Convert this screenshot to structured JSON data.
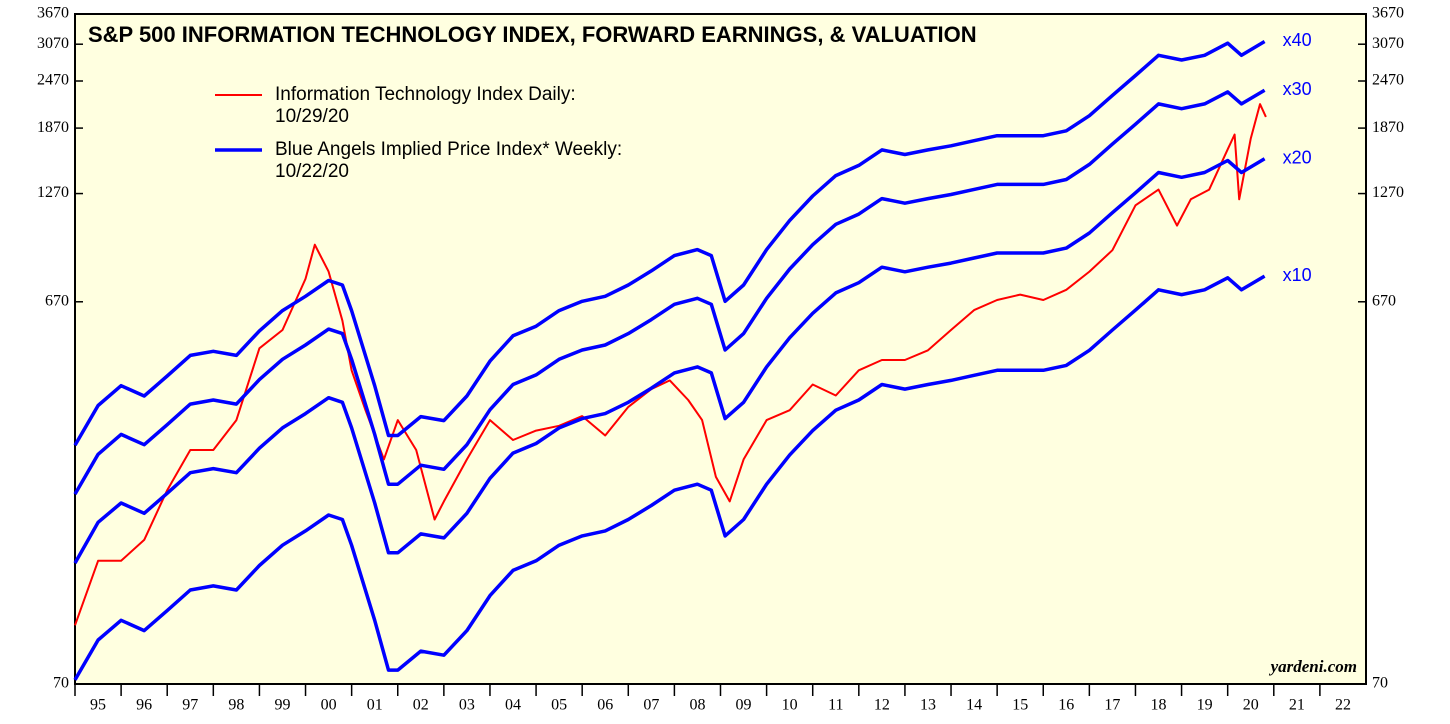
{
  "chart_data": {
    "type": "line",
    "title": "S&P 500 INFORMATION TECHNOLOGY INDEX, FORWARD EARNINGS, & VALUATION",
    "legend": [
      {
        "label": "Information Technology Index Daily:",
        "date": "10/29/20",
        "color": "#ff0000"
      },
      {
        "label": "Blue Angels Implied Price Index* Weekly:",
        "date": "10/22/20",
        "color": "#0000ff"
      }
    ],
    "source": "yardeni.com",
    "log_scale": true,
    "xlim": [
      1995,
      2023
    ],
    "xticks": [
      {
        "value": 1995,
        "label": "95"
      },
      {
        "value": 1996,
        "label": "96"
      },
      {
        "value": 1997,
        "label": "97"
      },
      {
        "value": 1998,
        "label": "98"
      },
      {
        "value": 1999,
        "label": "99"
      },
      {
        "value": 2000,
        "label": "00"
      },
      {
        "value": 2001,
        "label": "01"
      },
      {
        "value": 2002,
        "label": "02"
      },
      {
        "value": 2003,
        "label": "03"
      },
      {
        "value": 2004,
        "label": "04"
      },
      {
        "value": 2005,
        "label": "05"
      },
      {
        "value": 2006,
        "label": "06"
      },
      {
        "value": 2007,
        "label": "07"
      },
      {
        "value": 2008,
        "label": "08"
      },
      {
        "value": 2009,
        "label": "09"
      },
      {
        "value": 2010,
        "label": "10"
      },
      {
        "value": 2011,
        "label": "11"
      },
      {
        "value": 2012,
        "label": "12"
      },
      {
        "value": 2013,
        "label": "13"
      },
      {
        "value": 2014,
        "label": "14"
      },
      {
        "value": 2015,
        "label": "15"
      },
      {
        "value": 2016,
        "label": "16"
      },
      {
        "value": 2017,
        "label": "17"
      },
      {
        "value": 2018,
        "label": "18"
      },
      {
        "value": 2019,
        "label": "19"
      },
      {
        "value": 2020,
        "label": "20"
      },
      {
        "value": 2021,
        "label": "21"
      },
      {
        "value": 2022,
        "label": "22"
      }
    ],
    "ylim": [
      70,
      3670
    ],
    "yticks": [
      70,
      670,
      1270,
      1870,
      2470,
      3070,
      3670
    ],
    "y2lim": [
      70,
      3670
    ],
    "y2ticks": [
      70,
      670,
      1270,
      1870,
      2470,
      3070,
      3670
    ],
    "x": [
      1995.0,
      1995.5,
      1996.0,
      1996.5,
      1997.0,
      1997.5,
      1998.0,
      1998.5,
      1999.0,
      1999.5,
      2000.0,
      2000.5,
      2000.8,
      2001.0,
      2001.5,
      2001.8,
      2002.0,
      2002.5,
      2003.0,
      2003.5,
      2004.0,
      2004.5,
      2005.0,
      2005.5,
      2006.0,
      2006.5,
      2007.0,
      2007.5,
      2008.0,
      2008.5,
      2008.8,
      2009.1,
      2009.5,
      2010.0,
      2010.5,
      2011.0,
      2011.5,
      2012.0,
      2012.5,
      2013.0,
      2013.5,
      2014.0,
      2014.5,
      2015.0,
      2015.5,
      2016.0,
      2016.5,
      2017.0,
      2017.5,
      2018.0,
      2018.5,
      2019.0,
      2019.5,
      2020.0,
      2020.3,
      2020.8
    ],
    "series": [
      {
        "name": "Information Technology Index Daily",
        "color": "#ff0000",
        "x": [
          1995.0,
          1995.5,
          1996.0,
          1996.5,
          1997.0,
          1997.5,
          1998.0,
          1998.5,
          1999.0,
          1999.5,
          2000.0,
          2000.2,
          2000.5,
          2000.8,
          2001.0,
          2001.3,
          2001.7,
          2002.0,
          2002.4,
          2002.8,
          2003.0,
          2003.5,
          2004.0,
          2004.5,
          2005.0,
          2005.5,
          2006.0,
          2006.5,
          2007.0,
          2007.5,
          2007.9,
          2008.3,
          2008.6,
          2008.9,
          2009.2,
          2009.5,
          2010.0,
          2010.5,
          2011.0,
          2011.5,
          2012.0,
          2012.5,
          2013.0,
          2013.5,
          2014.0,
          2014.5,
          2015.0,
          2015.5,
          2016.0,
          2016.5,
          2017.0,
          2017.5,
          2018.0,
          2018.5,
          2018.9,
          2019.2,
          2019.6,
          2020.0,
          2020.15,
          2020.25,
          2020.5,
          2020.7,
          2020.83
        ],
        "values": [
          99,
          145,
          145,
          164,
          220,
          279,
          279,
          333,
          509,
          567,
          767,
          939,
          801,
          599,
          447,
          353,
          264,
          333,
          279,
          185,
          206,
          264,
          333,
          296,
          313,
          322,
          341,
          304,
          360,
          400,
          421,
          375,
          333,
          238,
          206,
          264,
          333,
          353,
          411,
          385,
          447,
          475,
          475,
          503,
          567,
          638,
          677,
          699,
          677,
          719,
          801,
          909,
          1185,
          1300,
          1051,
          1228,
          1300,
          1650,
          1800,
          1228,
          1755,
          2155,
          1998
        ]
      },
      {
        "name": "x40",
        "color": "#0000ff",
        "values": [
          287,
          363,
          408,
          384,
          432,
          488,
          500,
          488,
          564,
          636,
          692,
          760,
          740,
          636,
          408,
          304,
          304,
          340,
          332,
          384,
          472,
          548,
          580,
          636,
          672,
          692,
          740,
          804,
          880,
          912,
          880,
          672,
          740,
          912,
          1084,
          1252,
          1412,
          1500,
          1644,
          1600,
          1644,
          1684,
          1736,
          1788,
          1788,
          1788,
          1840,
          2012,
          2268,
          2552,
          2876,
          2796,
          2876,
          3088,
          2876,
          3120
        ]
      },
      {
        "name": "x30",
        "color": "#0000ff",
        "values": [
          215,
          272,
          306,
          288,
          324,
          366,
          375,
          366,
          423,
          477,
          519,
          570,
          555,
          477,
          306,
          228,
          228,
          255,
          249,
          288,
          354,
          411,
          435,
          477,
          504,
          519,
          555,
          603,
          660,
          684,
          660,
          504,
          555,
          684,
          813,
          939,
          1059,
          1125,
          1233,
          1200,
          1233,
          1263,
          1302,
          1341,
          1341,
          1341,
          1380,
          1509,
          1701,
          1914,
          2157,
          2097,
          2157,
          2316,
          2157,
          2340
        ]
      },
      {
        "name": "x20",
        "color": "#0000ff",
        "values": [
          143,
          182,
          204,
          192,
          216,
          244,
          250,
          244,
          282,
          318,
          346,
          380,
          370,
          318,
          204,
          152,
          152,
          170,
          166,
          192,
          236,
          274,
          290,
          318,
          336,
          346,
          370,
          402,
          440,
          456,
          440,
          336,
          370,
          456,
          542,
          626,
          706,
          750,
          822,
          800,
          822,
          842,
          868,
          894,
          894,
          894,
          920,
          1006,
          1134,
          1276,
          1438,
          1398,
          1438,
          1544,
          1438,
          1560
        ]
      },
      {
        "name": "x10",
        "color": "#0000ff",
        "values": [
          71.7,
          90.8,
          102,
          96,
          108,
          122,
          125,
          122,
          141,
          159,
          173,
          190,
          185,
          159,
          102,
          76,
          76,
          85,
          83,
          96,
          118,
          137,
          145,
          159,
          168,
          173,
          185,
          201,
          220,
          228,
          220,
          168,
          185,
          228,
          271,
          313,
          353,
          375,
          411,
          400,
          411,
          421,
          434,
          447,
          447,
          447,
          460,
          503,
          567,
          638,
          719,
          699,
          719,
          772,
          719,
          780
        ]
      }
    ]
  }
}
